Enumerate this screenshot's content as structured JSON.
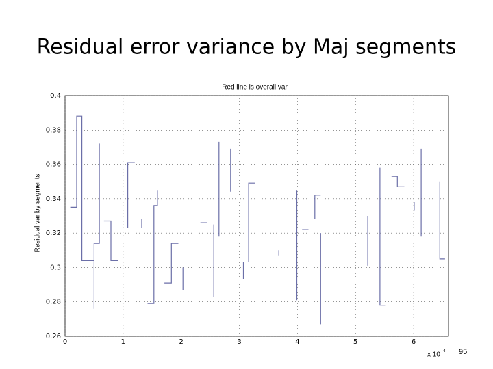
{
  "slide_title": "Residual error variance by Maj segments",
  "page_number": "95",
  "chart_data": {
    "type": "line",
    "title": "Red line is overall var",
    "ylabel": "Residual var by segments",
    "x_multiplier": {
      "base": "x 10",
      "exponent": "4"
    },
    "color": "#6b6fa8",
    "grid": true,
    "xlim": [
      0,
      6.6
    ],
    "ylim": [
      0.26,
      0.4
    ],
    "xticks": [
      0,
      1,
      2,
      3,
      4,
      5,
      6
    ],
    "yticks": [
      0.26,
      0.28,
      0.3,
      0.32,
      0.34,
      0.36,
      0.38,
      0.4
    ],
    "x": [
      0.09,
      0.2,
      0.2,
      0.29,
      0.29,
      0.5,
      0.5,
      0.5,
      0.59,
      0.59,
      null,
      0.67,
      0.79,
      0.79,
      0.91,
      null,
      1.08,
      1.08,
      1.2,
      null,
      1.32,
      1.32,
      null,
      1.42,
      1.53,
      1.53,
      1.59,
      1.59,
      null,
      1.71,
      1.83,
      1.83,
      1.95,
      null,
      2.03,
      2.03,
      null,
      2.33,
      2.45,
      null,
      2.56,
      2.56,
      null,
      2.65,
      2.65,
      null,
      2.85,
      2.85,
      null,
      3.07,
      3.07,
      null,
      3.16,
      3.16,
      3.27,
      null,
      3.68,
      3.68,
      null,
      3.99,
      3.99,
      null,
      4.08,
      4.19,
      null,
      4.3,
      4.3,
      4.4,
      null,
      4.4,
      4.4,
      null,
      5.21,
      5.21,
      null,
      5.42,
      5.42,
      5.52,
      null,
      5.62,
      5.72,
      5.72,
      5.84,
      null,
      6.01,
      6.01,
      null,
      6.13,
      6.13,
      null,
      6.45,
      6.45,
      6.54
    ],
    "values": [
      0.335,
      0.335,
      0.388,
      0.388,
      0.304,
      0.304,
      0.276,
      0.314,
      0.314,
      0.372,
      null,
      0.327,
      0.327,
      0.304,
      0.304,
      null,
      0.323,
      0.361,
      0.361,
      null,
      0.323,
      0.328,
      null,
      0.279,
      0.279,
      0.336,
      0.336,
      0.345,
      null,
      0.291,
      0.291,
      0.314,
      0.314,
      null,
      0.287,
      0.3,
      null,
      0.326,
      0.326,
      null,
      0.283,
      0.325,
      null,
      0.318,
      0.373,
      null,
      0.344,
      0.369,
      null,
      0.293,
      0.303,
      null,
      0.303,
      0.349,
      0.349,
      null,
      0.307,
      0.31,
      null,
      0.281,
      0.345,
      null,
      0.322,
      0.322,
      null,
      0.328,
      0.342,
      0.342,
      null,
      0.267,
      0.32,
      null,
      0.301,
      0.33,
      null,
      0.358,
      0.278,
      0.278,
      null,
      0.353,
      0.353,
      0.347,
      0.347,
      null,
      0.333,
      0.338,
      null,
      0.318,
      0.369,
      null,
      0.35,
      0.305,
      0.305
    ]
  }
}
